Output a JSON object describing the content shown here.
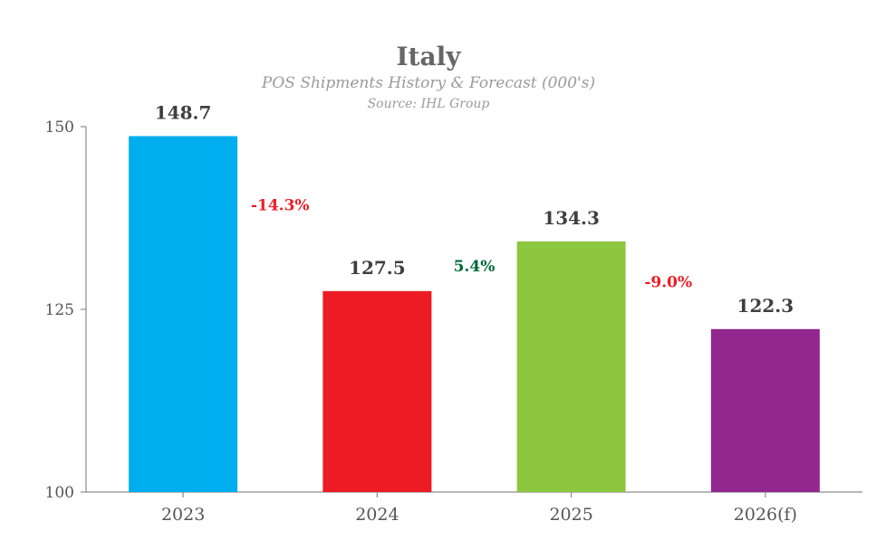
{
  "chart_data": {
    "type": "bar",
    "title": "Italy",
    "subtitle": "POS Shipments History & Forecast (000's)",
    "source": "Source: IHL Group",
    "categories": [
      "2023",
      "2024",
      "2025",
      "2026(f)"
    ],
    "values": [
      148.7,
      127.5,
      134.3,
      122.3
    ],
    "value_labels": [
      "148.7",
      "127.5",
      "134.3",
      "122.3"
    ],
    "bar_colors": [
      "#00aeef",
      "#ed1c24",
      "#8dc63f",
      "#92278f"
    ],
    "changes": [
      {
        "label": "-14.3%",
        "value": -14.3,
        "color": "#ed1c24"
      },
      {
        "label": "5.4%",
        "value": 5.4,
        "color": "#006837"
      },
      {
        "label": "-9.0%",
        "value": -9.0,
        "color": "#ed1c24"
      }
    ],
    "yticks": [
      100,
      125,
      150
    ],
    "ytick_labels": [
      "100",
      "125",
      "150"
    ],
    "ylim": [
      100,
      150
    ],
    "xlabel": "",
    "ylabel": "",
    "grid": false,
    "legend": "none"
  }
}
